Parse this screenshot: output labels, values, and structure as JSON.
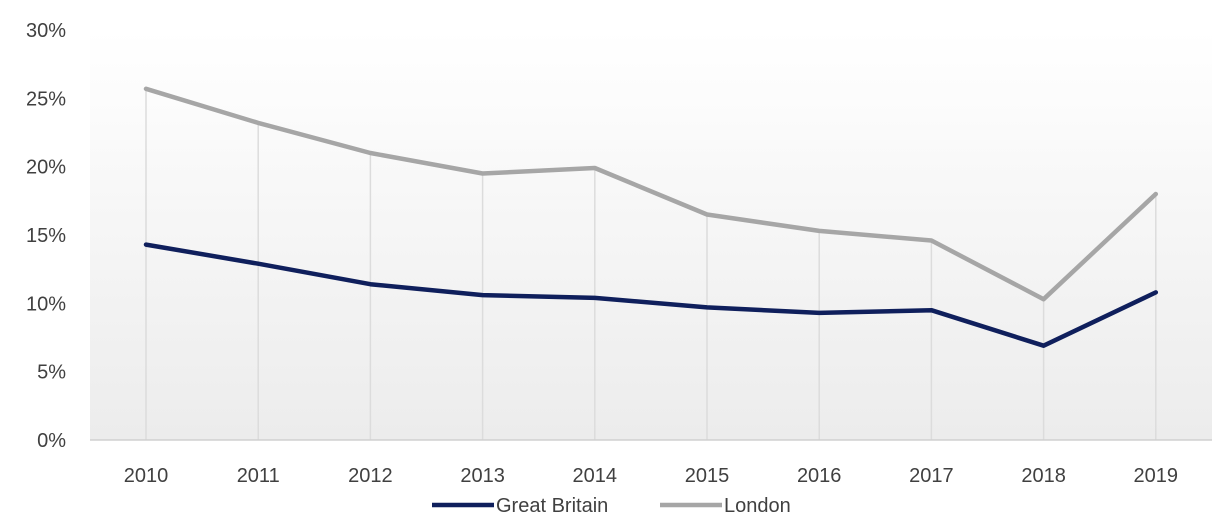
{
  "chart_data": {
    "type": "line",
    "title": "",
    "xlabel": "",
    "ylabel": "",
    "categories": [
      "2010",
      "2011",
      "2012",
      "2013",
      "2014",
      "2015",
      "2016",
      "2017",
      "2018",
      "2019"
    ],
    "ylim": [
      0,
      30
    ],
    "yticks": [
      0,
      5,
      10,
      15,
      20,
      25,
      30
    ],
    "ytick_labels": [
      "0%",
      "5%",
      "10%",
      "15%",
      "20%",
      "25%",
      "30%"
    ],
    "grid": "vertical",
    "legend_position": "bottom",
    "series": [
      {
        "name": "Great Britain",
        "color": "#0f1f5c",
        "values": [
          14.3,
          12.9,
          11.4,
          10.6,
          10.4,
          9.7,
          9.3,
          9.5,
          6.9,
          10.8
        ]
      },
      {
        "name": "London",
        "color": "#a6a6a6",
        "values": [
          25.7,
          23.2,
          21.0,
          19.5,
          19.9,
          16.5,
          15.3,
          14.6,
          10.3,
          18.0
        ]
      }
    ]
  }
}
